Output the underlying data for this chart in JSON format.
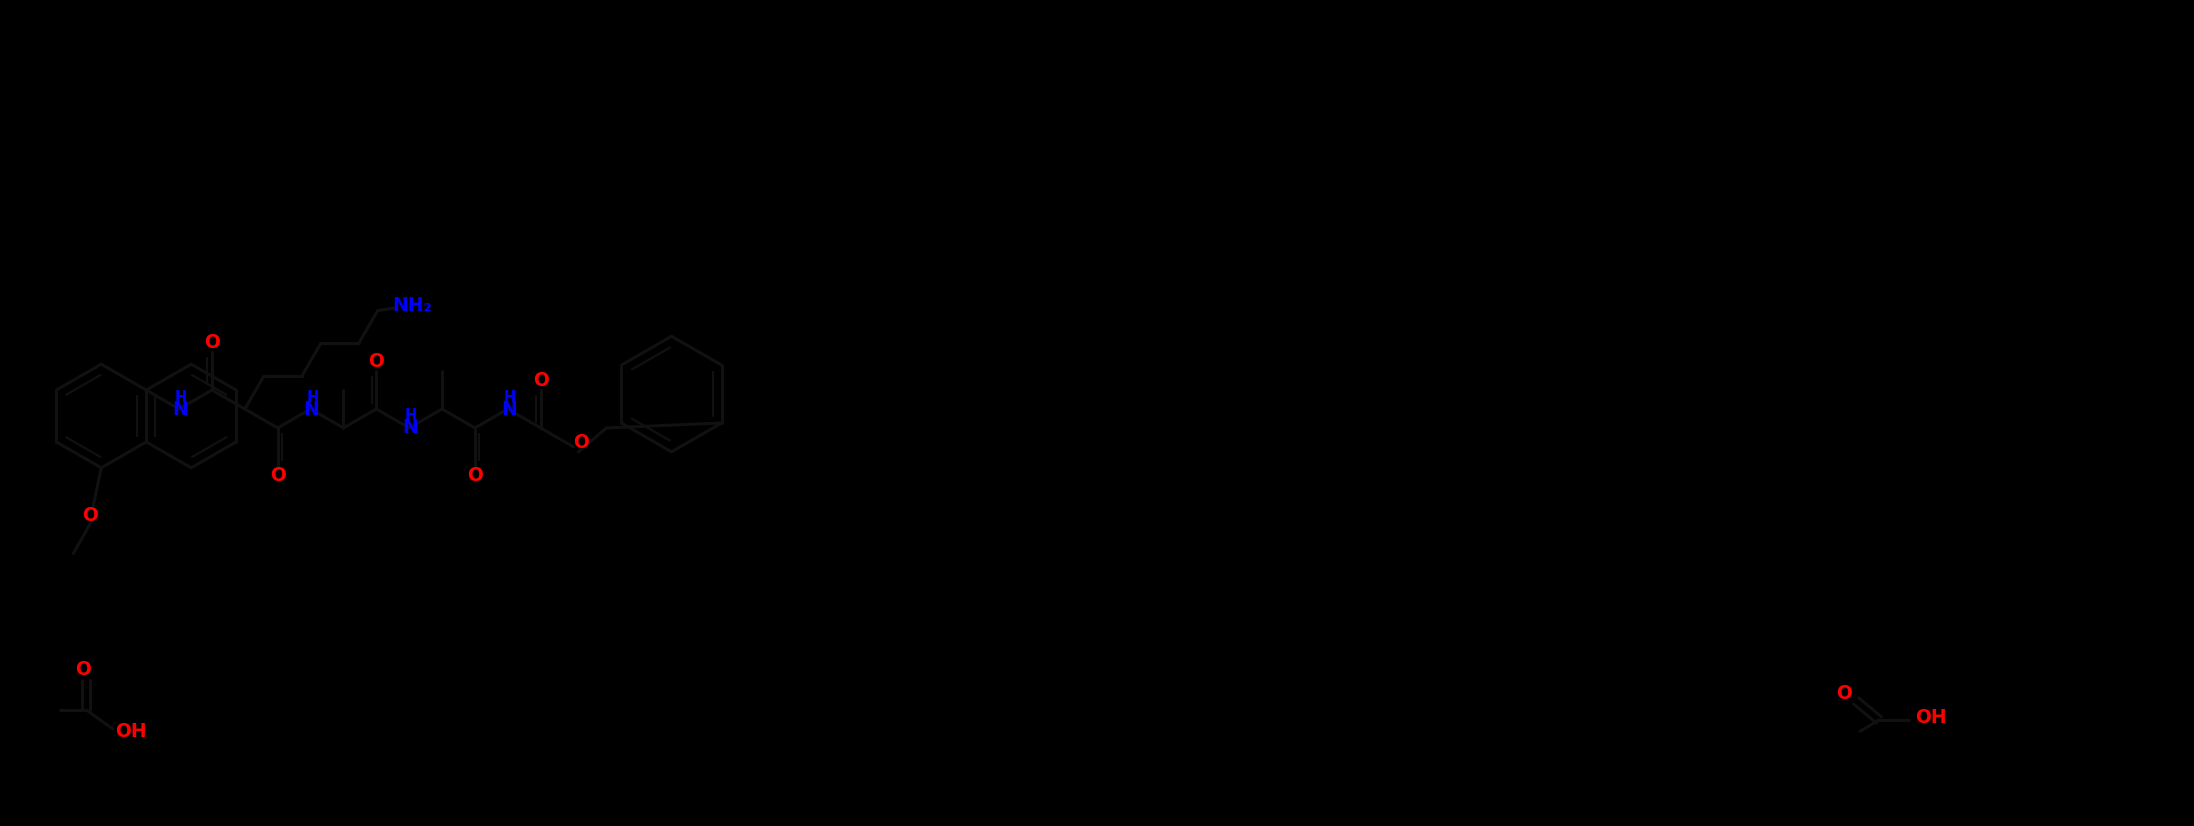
{
  "bg": "#000000",
  "N_color": "#0000FF",
  "O_color": "#FF0000",
  "C_color": "#000000",
  "bond_color": "#111111",
  "figsize": [
    21.94,
    8.26
  ],
  "dpi": 100,
  "lw": 2.2,
  "lw_inner": 1.6,
  "fs_hetero": 13.5,
  "fs_small": 10.5,
  "NH2_label": "NH₂",
  "OH_label": "OH",
  "NH_label": "NH",
  "O_label": "O",
  "H_label": "H",
  "N_label": "N"
}
